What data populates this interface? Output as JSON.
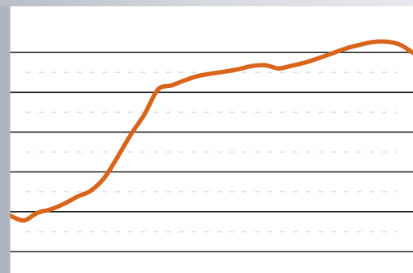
{
  "chart_data": {
    "type": "line",
    "title": "",
    "xlabel": "",
    "ylabel": "",
    "grid": true,
    "legend": "none",
    "x": [
      0,
      1,
      2,
      3,
      4,
      5,
      6,
      7,
      8,
      9,
      10,
      11,
      12,
      13,
      14,
      15,
      16,
      17,
      18,
      19,
      20,
      21,
      22,
      23,
      24,
      25,
      26,
      27,
      28,
      29,
      30
    ],
    "ylim": [
      0,
      5.5
    ],
    "xlim": [
      0,
      30
    ],
    "series": [
      {
        "values": [
          0.9,
          0.78,
          0.97,
          1.06,
          1.2,
          1.38,
          1.53,
          1.85,
          2.38,
          2.95,
          3.45,
          4.07,
          4.17,
          4.3,
          4.41,
          4.47,
          4.52,
          4.58,
          4.66,
          4.68,
          4.6,
          4.67,
          4.75,
          4.86,
          4.98,
          5.1,
          5.19,
          5.26,
          5.27,
          5.2,
          4.99
        ],
        "color": "#d9641c"
      }
    ],
    "colors": {
      "line": "#d9641c",
      "grid": "#222222",
      "faint_grid": "#d6d6ea"
    }
  }
}
